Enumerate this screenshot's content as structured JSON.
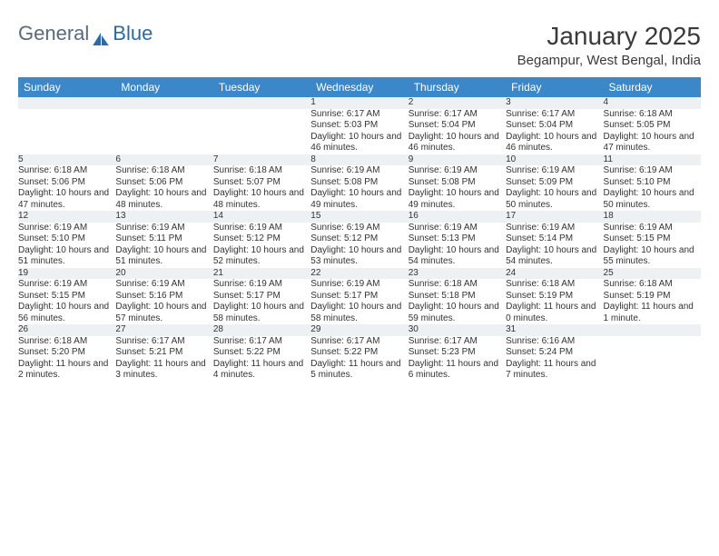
{
  "brand": {
    "part1": "General",
    "part2": "Blue"
  },
  "title": "January 2025",
  "location": "Begampur, West Bengal, India",
  "colors": {
    "header_bg": "#3b87c8",
    "header_text": "#ffffff",
    "daynum_bg": "#eef1f3",
    "row_border": "#3a6a94",
    "body_text": "#333333",
    "title_text": "#3a3a3a"
  },
  "weekdays": [
    "Sunday",
    "Monday",
    "Tuesday",
    "Wednesday",
    "Thursday",
    "Friday",
    "Saturday"
  ],
  "weeks": [
    {
      "nums": [
        "",
        "",
        "",
        "1",
        "2",
        "3",
        "4"
      ],
      "details": [
        null,
        null,
        null,
        {
          "sunrise": "6:17 AM",
          "sunset": "5:03 PM",
          "daylight": "10 hours and 46 minutes."
        },
        {
          "sunrise": "6:17 AM",
          "sunset": "5:04 PM",
          "daylight": "10 hours and 46 minutes."
        },
        {
          "sunrise": "6:17 AM",
          "sunset": "5:04 PM",
          "daylight": "10 hours and 46 minutes."
        },
        {
          "sunrise": "6:18 AM",
          "sunset": "5:05 PM",
          "daylight": "10 hours and 47 minutes."
        }
      ]
    },
    {
      "nums": [
        "5",
        "6",
        "7",
        "8",
        "9",
        "10",
        "11"
      ],
      "details": [
        {
          "sunrise": "6:18 AM",
          "sunset": "5:06 PM",
          "daylight": "10 hours and 47 minutes."
        },
        {
          "sunrise": "6:18 AM",
          "sunset": "5:06 PM",
          "daylight": "10 hours and 48 minutes."
        },
        {
          "sunrise": "6:18 AM",
          "sunset": "5:07 PM",
          "daylight": "10 hours and 48 minutes."
        },
        {
          "sunrise": "6:19 AM",
          "sunset": "5:08 PM",
          "daylight": "10 hours and 49 minutes."
        },
        {
          "sunrise": "6:19 AM",
          "sunset": "5:08 PM",
          "daylight": "10 hours and 49 minutes."
        },
        {
          "sunrise": "6:19 AM",
          "sunset": "5:09 PM",
          "daylight": "10 hours and 50 minutes."
        },
        {
          "sunrise": "6:19 AM",
          "sunset": "5:10 PM",
          "daylight": "10 hours and 50 minutes."
        }
      ]
    },
    {
      "nums": [
        "12",
        "13",
        "14",
        "15",
        "16",
        "17",
        "18"
      ],
      "details": [
        {
          "sunrise": "6:19 AM",
          "sunset": "5:10 PM",
          "daylight": "10 hours and 51 minutes."
        },
        {
          "sunrise": "6:19 AM",
          "sunset": "5:11 PM",
          "daylight": "10 hours and 51 minutes."
        },
        {
          "sunrise": "6:19 AM",
          "sunset": "5:12 PM",
          "daylight": "10 hours and 52 minutes."
        },
        {
          "sunrise": "6:19 AM",
          "sunset": "5:12 PM",
          "daylight": "10 hours and 53 minutes."
        },
        {
          "sunrise": "6:19 AM",
          "sunset": "5:13 PM",
          "daylight": "10 hours and 54 minutes."
        },
        {
          "sunrise": "6:19 AM",
          "sunset": "5:14 PM",
          "daylight": "10 hours and 54 minutes."
        },
        {
          "sunrise": "6:19 AM",
          "sunset": "5:15 PM",
          "daylight": "10 hours and 55 minutes."
        }
      ]
    },
    {
      "nums": [
        "19",
        "20",
        "21",
        "22",
        "23",
        "24",
        "25"
      ],
      "details": [
        {
          "sunrise": "6:19 AM",
          "sunset": "5:15 PM",
          "daylight": "10 hours and 56 minutes."
        },
        {
          "sunrise": "6:19 AM",
          "sunset": "5:16 PM",
          "daylight": "10 hours and 57 minutes."
        },
        {
          "sunrise": "6:19 AM",
          "sunset": "5:17 PM",
          "daylight": "10 hours and 58 minutes."
        },
        {
          "sunrise": "6:19 AM",
          "sunset": "5:17 PM",
          "daylight": "10 hours and 58 minutes."
        },
        {
          "sunrise": "6:18 AM",
          "sunset": "5:18 PM",
          "daylight": "10 hours and 59 minutes."
        },
        {
          "sunrise": "6:18 AM",
          "sunset": "5:19 PM",
          "daylight": "11 hours and 0 minutes."
        },
        {
          "sunrise": "6:18 AM",
          "sunset": "5:19 PM",
          "daylight": "11 hours and 1 minute."
        }
      ]
    },
    {
      "nums": [
        "26",
        "27",
        "28",
        "29",
        "30",
        "31",
        ""
      ],
      "details": [
        {
          "sunrise": "6:18 AM",
          "sunset": "5:20 PM",
          "daylight": "11 hours and 2 minutes."
        },
        {
          "sunrise": "6:17 AM",
          "sunset": "5:21 PM",
          "daylight": "11 hours and 3 minutes."
        },
        {
          "sunrise": "6:17 AM",
          "sunset": "5:22 PM",
          "daylight": "11 hours and 4 minutes."
        },
        {
          "sunrise": "6:17 AM",
          "sunset": "5:22 PM",
          "daylight": "11 hours and 5 minutes."
        },
        {
          "sunrise": "6:17 AM",
          "sunset": "5:23 PM",
          "daylight": "11 hours and 6 minutes."
        },
        {
          "sunrise": "6:16 AM",
          "sunset": "5:24 PM",
          "daylight": "11 hours and 7 minutes."
        },
        null
      ]
    }
  ],
  "labels": {
    "sunrise": "Sunrise: ",
    "sunset": "Sunset: ",
    "daylight": "Daylight: "
  }
}
